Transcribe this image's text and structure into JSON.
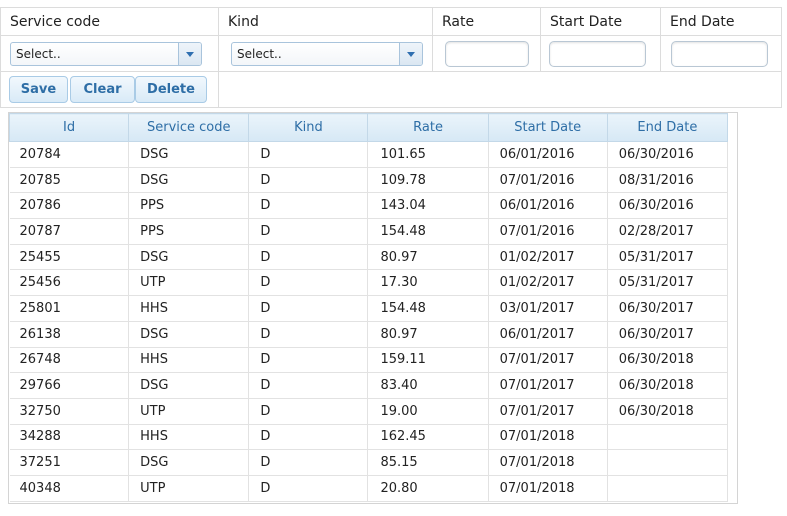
{
  "form": {
    "headers": [
      "Service code",
      "Kind",
      "Rate",
      "Start Date",
      "End Date"
    ],
    "service_code_select": "Select..",
    "kind_select": "Select..",
    "rate_value": "",
    "start_date_value": "",
    "end_date_value": "",
    "buttons": {
      "save": "Save",
      "clear": "Clear",
      "delete": "Delete"
    }
  },
  "grid": {
    "columns": [
      "Id",
      "Service code",
      "Kind",
      "Rate",
      "Start Date",
      "End Date"
    ],
    "rows": [
      [
        "20784",
        "DSG",
        "D",
        "101.65",
        "06/01/2016",
        "06/30/2016"
      ],
      [
        "20785",
        "DSG",
        "D",
        "109.78",
        "07/01/2016",
        "08/31/2016"
      ],
      [
        "20786",
        "PPS",
        "D",
        "143.04",
        "06/01/2016",
        "06/30/2016"
      ],
      [
        "20787",
        "PPS",
        "D",
        "154.48",
        "07/01/2016",
        "02/28/2017"
      ],
      [
        "25455",
        "DSG",
        "D",
        "80.97",
        "01/02/2017",
        "05/31/2017"
      ],
      [
        "25456",
        "UTP",
        "D",
        "17.30",
        "01/02/2017",
        "05/31/2017"
      ],
      [
        "25801",
        "HHS",
        "D",
        "154.48",
        "03/01/2017",
        "06/30/2017"
      ],
      [
        "26138",
        "DSG",
        "D",
        "80.97",
        "06/01/2017",
        "06/30/2017"
      ],
      [
        "26748",
        "HHS",
        "D",
        "159.11",
        "07/01/2017",
        "06/30/2018"
      ],
      [
        "29766",
        "DSG",
        "D",
        "83.40",
        "07/01/2017",
        "06/30/2018"
      ],
      [
        "32750",
        "UTP",
        "D",
        "19.00",
        "07/01/2017",
        "06/30/2018"
      ],
      [
        "34288",
        "HHS",
        "D",
        "162.45",
        "07/01/2018",
        ""
      ],
      [
        "37251",
        "DSG",
        "D",
        "85.15",
        "07/01/2018",
        ""
      ],
      [
        "40348",
        "UTP",
        "D",
        "20.80",
        "07/01/2018",
        ""
      ]
    ]
  },
  "colors": {
    "accent_text": "#2e6ea6",
    "header_bg": "#d6e8f5",
    "border": "#dcdcdc"
  }
}
